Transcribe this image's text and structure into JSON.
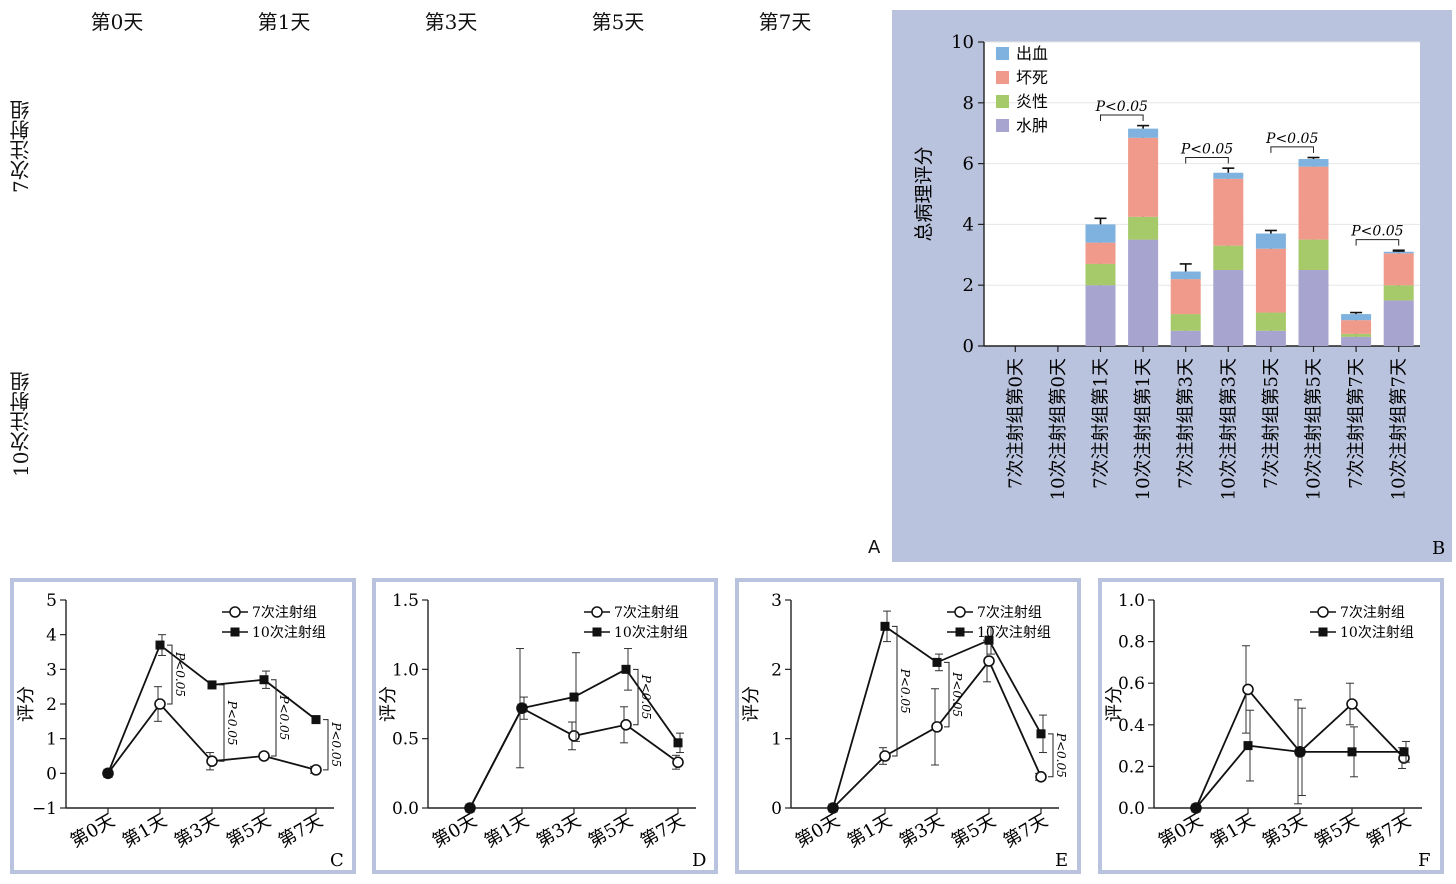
{
  "histology": {
    "columns": [
      "第0天",
      "第1天",
      "第3天",
      "第5天",
      "第7天"
    ],
    "rows": [
      "7次注射组",
      "10次注射组"
    ],
    "panel_letter": "A"
  },
  "colors": {
    "panel_bg": "#b9c3dd",
    "hemorrhage": "#7fb2de",
    "necrosis": "#ef9a8a",
    "inflammation": "#a6c96a",
    "edema": "#a7a4cf",
    "tissue_dark": "#c45ca6",
    "tissue_light": "#e7b5d8"
  },
  "chart_data": [
    {
      "id": "B",
      "type": "bar",
      "stacked": true,
      "panel_letter": "B",
      "ylabel": "总病理评分",
      "ylim": [
        0,
        10
      ],
      "yticks": [
        "0",
        "2",
        "4",
        "6",
        "8",
        "10"
      ],
      "categories": [
        "7次注射组第0天",
        "10次注射组第0天",
        "7次注射组第1天",
        "10次注射组第1天",
        "7次注射组第3天",
        "10次注射组第3天",
        "7次注射组第5天",
        "10次注射组第5天",
        "7次注射组第7天",
        "10次注射组第7天"
      ],
      "legend_position": "top-left",
      "series": [
        {
          "name": "水肿",
          "color": "#a7a4cf",
          "values": [
            0,
            0,
            2.0,
            3.5,
            0.5,
            2.5,
            0.5,
            2.5,
            0.3,
            1.5
          ],
          "err": [
            0,
            0,
            0.3,
            0,
            0.05,
            0,
            0.1,
            0,
            0.05,
            0
          ]
        },
        {
          "name": "炎性",
          "color": "#a6c96a",
          "values": [
            0,
            0,
            0.7,
            0.75,
            0.55,
            0.8,
            0.6,
            1.0,
            0.1,
            0.5
          ],
          "err": [
            0,
            0,
            0.3,
            0.05,
            0.05,
            0.1,
            0.05,
            0.05,
            0.05,
            0.05
          ]
        },
        {
          "name": "坏死",
          "color": "#ef9a8a",
          "values": [
            0,
            0,
            0.7,
            2.6,
            1.15,
            2.2,
            2.1,
            2.4,
            0.45,
            1.05
          ],
          "err": [
            0,
            0,
            0.15,
            0.1,
            0.05,
            0.1,
            0.05,
            0.1,
            0.05,
            0.05
          ]
        },
        {
          "name": "出血",
          "color": "#7fb2de",
          "values": [
            0,
            0,
            0.6,
            0.3,
            0.25,
            0.2,
            0.5,
            0.25,
            0.2,
            0.05
          ],
          "err": [
            0,
            0,
            0.2,
            0.1,
            0.25,
            0.15,
            0.1,
            0.05,
            0.05,
            0.05
          ]
        }
      ],
      "annotations": [
        {
          "text": "P<0.05",
          "between": [
            2,
            3
          ]
        },
        {
          "text": "P<0.05",
          "between": [
            4,
            5
          ]
        },
        {
          "text": "P<0.05",
          "between": [
            6,
            7
          ]
        },
        {
          "text": "P<0.05",
          "between": [
            8,
            9
          ]
        }
      ]
    },
    {
      "id": "C",
      "type": "line",
      "panel_letter": "C",
      "ylabel": "评分",
      "ylim": [
        -1,
        5
      ],
      "yticks": [
        "−1",
        "0",
        "1",
        "2",
        "3",
        "4",
        "5"
      ],
      "categories": [
        "第0天",
        "第1天",
        "第3天",
        "第5天",
        "第7天"
      ],
      "series": [
        {
          "name": "7次注射组",
          "marker": "open-circle",
          "values": [
            0,
            2.0,
            0.35,
            0.5,
            0.1
          ],
          "err": [
            0,
            0.5,
            0.25,
            0,
            0.1
          ]
        },
        {
          "name": "10次注射组",
          "marker": "filled-square",
          "values": [
            0,
            3.7,
            2.55,
            2.7,
            1.55
          ],
          "err": [
            0,
            0.3,
            0,
            0.25,
            0
          ]
        }
      ],
      "annotations": [
        "P<0.05",
        "P<0.05",
        "P<0.05",
        "P<0.05"
      ]
    },
    {
      "id": "D",
      "type": "line",
      "panel_letter": "D",
      "ylabel": "评分",
      "ylim": [
        0,
        1.5
      ],
      "yticks": [
        "0.0",
        "0.5",
        "1.0",
        "1.5"
      ],
      "categories": [
        "第0天",
        "第1天",
        "第3天",
        "第5天",
        "第7天"
      ],
      "series": [
        {
          "name": "7次注射组",
          "marker": "open-circle",
          "values": [
            0,
            0.72,
            0.52,
            0.6,
            0.33
          ],
          "err": [
            0,
            0.43,
            0.1,
            0.13,
            0.05
          ]
        },
        {
          "name": "10次注射组",
          "marker": "filled-square",
          "values": [
            0,
            0.72,
            0.8,
            1.0,
            0.47
          ],
          "err": [
            0,
            0.08,
            0.32,
            0.15,
            0.07
          ]
        }
      ],
      "annotations": [
        "P<0.05"
      ]
    },
    {
      "id": "E",
      "type": "line",
      "panel_letter": "E",
      "ylabel": "评分",
      "ylim": [
        0,
        3
      ],
      "yticks": [
        "0",
        "1",
        "2",
        "3"
      ],
      "categories": [
        "第0天",
        "第1天",
        "第3天",
        "第5天",
        "第7天"
      ],
      "series": [
        {
          "name": "7次注射组",
          "marker": "open-circle",
          "values": [
            0,
            0.75,
            1.17,
            2.12,
            0.45
          ],
          "err": [
            0,
            0.12,
            0.55,
            0.3,
            0.05
          ]
        },
        {
          "name": "10次注射组",
          "marker": "filled-square",
          "values": [
            0,
            2.62,
            2.1,
            2.42,
            1.07
          ],
          "err": [
            0,
            0.22,
            0.12,
            0.2,
            0.27
          ]
        }
      ],
      "annotations": [
        "P<0.05",
        "P<0.05",
        "P<0.05"
      ]
    },
    {
      "id": "F",
      "type": "line",
      "panel_letter": "F",
      "ylabel": "评分",
      "ylim": [
        0,
        1.0
      ],
      "yticks": [
        "0.0",
        "0.2",
        "0.4",
        "0.6",
        "0.8",
        "1.0"
      ],
      "categories": [
        "第0天",
        "第1天",
        "第3天",
        "第5天",
        "第7天"
      ],
      "series": [
        {
          "name": "7次注射组",
          "marker": "open-circle",
          "values": [
            0,
            0.57,
            0.27,
            0.5,
            0.24
          ],
          "err": [
            0,
            0.21,
            0.25,
            0.1,
            0.05
          ]
        },
        {
          "name": "10次注射组",
          "marker": "filled-square",
          "values": [
            0,
            0.3,
            0.27,
            0.27,
            0.27
          ],
          "err": [
            0,
            0.17,
            0.21,
            0.12,
            0.05
          ]
        }
      ],
      "annotations": []
    }
  ]
}
